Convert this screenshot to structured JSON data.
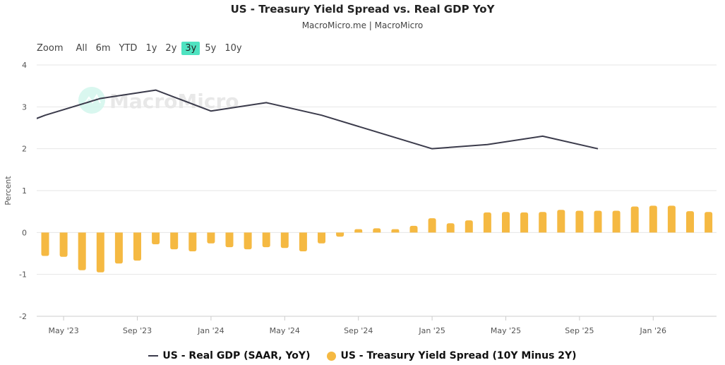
{
  "title": "US - Treasury Yield Spread vs. Real GDP YoY",
  "subtitle": "MacroMicro.me | MacroMicro",
  "watermark": "MacroMicro",
  "zoom": {
    "label": "Zoom",
    "options": [
      "All",
      "6m",
      "YTD",
      "1y",
      "2y",
      "3y",
      "5y",
      "10y"
    ],
    "selected": "3y"
  },
  "colors": {
    "gdp_line": "#3b3b4b",
    "spread_bar": "#f5b942",
    "zoom_active": "#4fe3c1"
  },
  "chart_data": {
    "type": "bar+line",
    "title": "US - Treasury Yield Spread vs. Real GDP YoY",
    "ylabel": "Percent",
    "ylim": [
      -2,
      4
    ],
    "yticks": [
      4,
      3,
      2,
      1,
      0,
      -1,
      -2
    ],
    "grid": true,
    "legend_position": "bottom",
    "xtick_labels": [
      "May '23",
      "Sep '23",
      "Jan '24",
      "May '24",
      "Sep '24",
      "Jan '25",
      "May '25",
      "Sep '25",
      "Jan '26"
    ],
    "series": [
      {
        "name": "US - Real GDP (SAAR, YoY)",
        "type": "line",
        "x": [
          "2023-01",
          "2023-04",
          "2023-07",
          "2023-10",
          "2024-01",
          "2024-04",
          "2024-07",
          "2024-10",
          "2025-01",
          "2025-04",
          "2025-07",
          "2025-10"
        ],
        "values": [
          2.3,
          2.8,
          3.2,
          3.4,
          2.9,
          3.1,
          2.8,
          2.4,
          2.0,
          2.1,
          2.3,
          2.0
        ]
      },
      {
        "name": "US - Treasury Yield Spread (10Y Minus 2Y)",
        "type": "bar",
        "x": [
          "2023-04",
          "2023-05",
          "2023-06",
          "2023-07",
          "2023-08",
          "2023-09",
          "2023-10",
          "2023-11",
          "2023-12",
          "2024-01",
          "2024-02",
          "2024-03",
          "2024-04",
          "2024-05",
          "2024-06",
          "2024-07",
          "2024-08",
          "2024-09",
          "2024-10",
          "2024-11",
          "2024-12",
          "2025-01",
          "2025-02",
          "2025-03",
          "2025-04",
          "2025-05",
          "2025-06",
          "2025-07",
          "2025-08",
          "2025-09",
          "2025-10",
          "2025-11",
          "2025-12",
          "2026-01",
          "2026-02",
          "2026-03",
          "2026-04"
        ],
        "values": [
          -0.56,
          -0.58,
          -0.9,
          -0.95,
          -0.74,
          -0.67,
          -0.28,
          -0.4,
          -0.45,
          -0.26,
          -0.35,
          -0.4,
          -0.35,
          -0.37,
          -0.45,
          -0.26,
          -0.1,
          0.08,
          0.1,
          0.08,
          0.16,
          0.34,
          0.22,
          0.29,
          0.48,
          0.49,
          0.48,
          0.49,
          0.54,
          0.52,
          0.52,
          0.52,
          0.62,
          0.64,
          0.64,
          0.51,
          0.49
        ]
      }
    ]
  }
}
